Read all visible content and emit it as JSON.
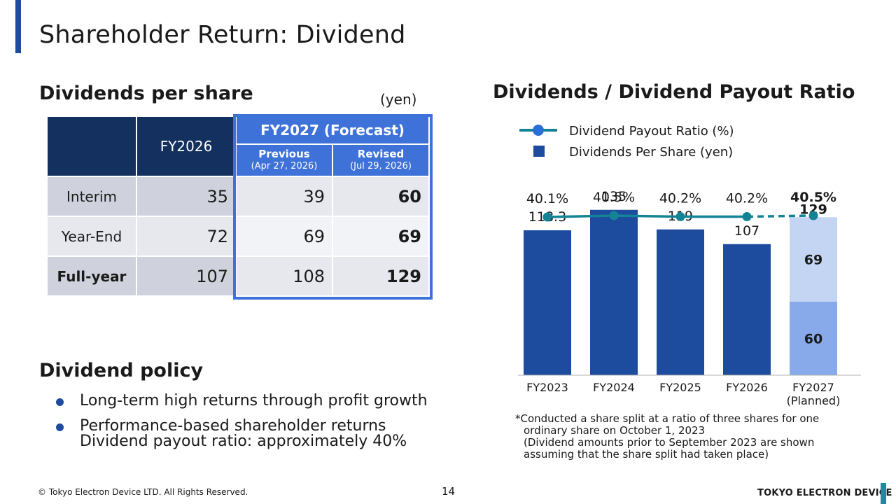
{
  "slide_title": "Shareholder Return: Dividend",
  "dps_section": {
    "heading": "Dividends per share",
    "unit": "(yen)",
    "table": {
      "col_fy2026": "FY2026",
      "forecast_group": "FY2027 (Forecast)",
      "previous_label": "Previous",
      "previous_date": "(Apr 27, 2026)",
      "revised_label": "Revised",
      "revised_date": "(Jul 29, 2026)",
      "rows": [
        {
          "label": "Interim",
          "fy2026": "35",
          "previous": "39",
          "revised": "60"
        },
        {
          "label": "Year-End",
          "fy2026": "72",
          "previous": "69",
          "revised": "69"
        },
        {
          "label": "Full-year",
          "fy2026": "107",
          "previous": "108",
          "revised": "129"
        }
      ]
    }
  },
  "policy_section": {
    "heading": "Dividend policy",
    "bullets": [
      {
        "line1": "Long-term high returns through profit growth",
        "line2": ""
      },
      {
        "line1": "Performance-based shareholder returns",
        "line2": "Dividend payout ratio: approximately 40%"
      }
    ]
  },
  "chart_section": {
    "heading": "Dividends / Dividend Payout Ratio",
    "note_lines": [
      "*Conducted a share split at a ratio of three shares for one",
      "ordinary share on October 1, 2023",
      "(Dividend amounts prior to September 2023 are shown",
      "assuming that the share split had taken place)"
    ]
  },
  "chart_data": {
    "type": "bar",
    "categories": [
      "FY2023",
      "FY2024",
      "FY2025",
      "FY2026",
      "FY2027"
    ],
    "category_sublabels": [
      "",
      "",
      "",
      "",
      "(Planned)"
    ],
    "series": [
      {
        "name": "Dividends Per Share (yen)",
        "values": [
          118.3,
          135,
          119,
          107,
          null
        ],
        "labels": [
          "118.3",
          "135",
          "119",
          "107",
          ""
        ],
        "color": "#1d4b9e"
      },
      {
        "name": "Interim",
        "values": [
          null,
          null,
          null,
          null,
          60
        ],
        "labels": [
          "",
          "",
          "",
          "",
          "60"
        ],
        "color": "#88aaea"
      },
      {
        "name": "Year-End",
        "values": [
          null,
          null,
          null,
          null,
          69
        ],
        "labels": [
          "",
          "",
          "",
          "",
          "69"
        ],
        "color": "#c4d5f3"
      }
    ],
    "fy2027_total": {
      "value": 129,
      "label": "129"
    },
    "line_series": {
      "name": "Dividend Payout Ratio (%)",
      "values": [
        40.1,
        40.5,
        40.2,
        40.2,
        40.5
      ],
      "labels": [
        "40.1%",
        "40.5%",
        "40.2%",
        "40.2%",
        "40.5%"
      ],
      "color": "#138496",
      "dashed_last_segment": true
    },
    "legend_position": "top"
  },
  "footer": {
    "copyright": "© Tokyo Electron Device LTD. All Rights Reserved.",
    "page": "14",
    "company": "TOKYO ELECTRON DEVICE"
  },
  "colors": {
    "accent": "#1d4b9e",
    "teal": "#1d8aa0",
    "table_header": "#13305f",
    "forecast": "#3e72d8"
  }
}
